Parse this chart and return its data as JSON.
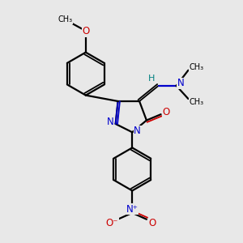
{
  "bg_color": "#e8e8e8",
  "bond_color": "#000000",
  "n_color": "#0000cc",
  "o_color": "#cc0000",
  "h_color": "#008080",
  "figsize": [
    3.0,
    3.0
  ],
  "dpi": 100,
  "xlim": [
    0,
    10
  ],
  "ylim": [
    0,
    10
  ]
}
